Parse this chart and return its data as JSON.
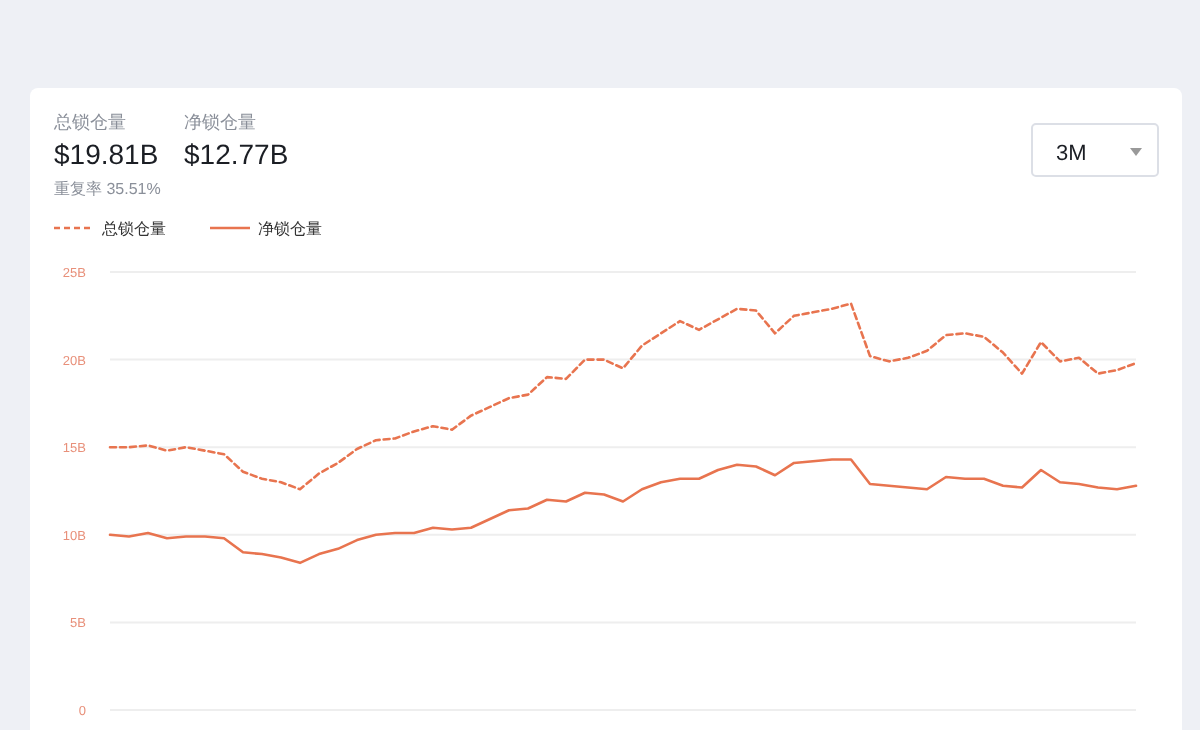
{
  "chart_data": {
    "type": "line",
    "annotations": [
      "总锁仓量",
      "$19.81B",
      "净锁仓量",
      "$12.77B",
      "重复率 35.51%",
      "3M"
    ],
    "categories": [
      null,
      null,
      null,
      null,
      null,
      null,
      null,
      null,
      null,
      null,
      null,
      null,
      null,
      null,
      null,
      null,
      null,
      null,
      null,
      null,
      null,
      null,
      null,
      null,
      null,
      null,
      null,
      null,
      null,
      null,
      null,
      null,
      null,
      null,
      null,
      null,
      null,
      null,
      null,
      null,
      null,
      null,
      null,
      null,
      null,
      null,
      null,
      null,
      null,
      null,
      null,
      null,
      null,
      null,
      null
    ],
    "series": [
      {
        "name": "总锁仓量",
        "color": "#e8744f",
        "line_style": "dashed",
        "values": [
          15.0,
          15.0,
          15.1,
          14.8,
          15.0,
          14.8,
          14.6,
          13.6,
          13.2,
          13.0,
          12.6,
          13.5,
          14.1,
          14.9,
          15.4,
          15.5,
          15.9,
          16.2,
          16.0,
          16.8,
          17.3,
          17.8,
          18.0,
          19.0,
          18.9,
          20.0,
          20.0,
          19.5,
          20.8,
          21.5,
          22.2,
          21.7,
          22.3,
          22.9,
          22.8,
          21.5,
          22.5,
          22.7,
          22.9,
          23.2,
          20.2,
          19.9,
          20.1,
          20.5,
          21.4,
          21.5,
          21.3,
          20.4,
          19.2,
          21.0,
          19.9,
          20.1,
          19.2,
          19.4,
          19.8
        ]
      },
      {
        "name": "净锁仓量",
        "color": "#e8744f",
        "line_style": "solid",
        "values": [
          10.0,
          9.9,
          10.1,
          9.8,
          9.9,
          9.9,
          9.8,
          9.0,
          8.9,
          8.7,
          8.4,
          8.9,
          9.2,
          9.7,
          10.0,
          10.1,
          10.1,
          10.4,
          10.3,
          10.4,
          10.9,
          11.4,
          11.5,
          12.0,
          11.9,
          12.4,
          12.3,
          11.9,
          12.6,
          13.0,
          13.2,
          13.2,
          13.7,
          14.0,
          13.9,
          13.4,
          14.1,
          14.2,
          14.3,
          14.3,
          12.9,
          12.8,
          12.7,
          12.6,
          13.3,
          13.2,
          13.2,
          12.8,
          12.7,
          13.7,
          13.0,
          12.9,
          12.7,
          12.6,
          12.8
        ]
      }
    ],
    "ylim": [
      0,
      25
    ],
    "yticks": [
      {
        "value": 0,
        "label": "0"
      },
      {
        "value": 5,
        "label": "5B"
      },
      {
        "value": 10,
        "label": "10B"
      },
      {
        "value": 15,
        "label": "15B"
      },
      {
        "value": 20,
        "label": "20B"
      },
      {
        "value": 25,
        "label": "25B"
      }
    ],
    "grid": "y",
    "legend": "top left"
  }
}
